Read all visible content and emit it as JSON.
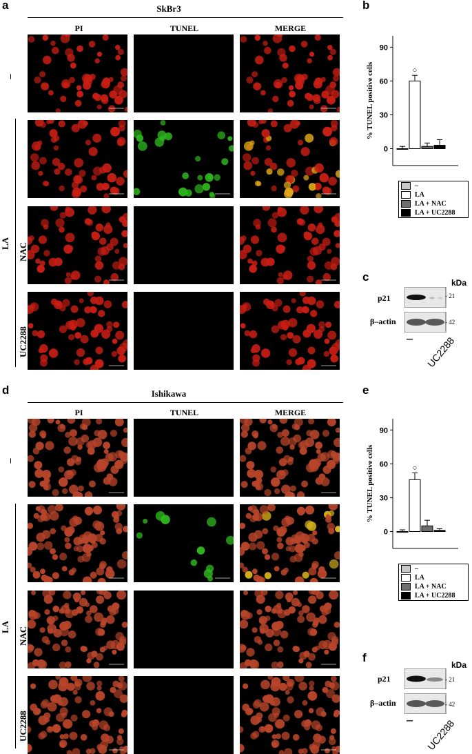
{
  "panels": {
    "a": "a",
    "b": "b",
    "c": "c",
    "d": "d",
    "e": "e",
    "f": "f"
  },
  "section_top": {
    "cell_line": "SkBr3",
    "columns": [
      "PI",
      "TUNEL",
      "MERGE"
    ],
    "row_control": "–",
    "row_group": "LA",
    "rows": [
      "NAC",
      "UC2288"
    ]
  },
  "section_bottom": {
    "cell_line": "Ishikawa",
    "columns": [
      "PI",
      "TUNEL",
      "MERGE"
    ],
    "row_control": "–",
    "row_group": "LA",
    "rows": [
      "NAC",
      "UC2288"
    ]
  },
  "chart_data": [
    {
      "type": "bar",
      "panel": "b",
      "ylabel": "% TUNEL positive cells",
      "yticks": [
        0,
        30,
        60,
        90
      ],
      "ylim": [
        -15,
        100
      ],
      "categories": [
        "–",
        "LA",
        "LA + NAC",
        "LA + UC2288"
      ],
      "values": [
        0,
        60,
        2,
        3
      ],
      "errors": [
        2,
        5,
        3,
        5
      ],
      "significance": [
        "",
        "○",
        "",
        ""
      ],
      "fills": [
        "#c8c8c8",
        "#ffffff",
        "#6e6e6e",
        "#000000"
      ]
    },
    {
      "type": "bar",
      "panel": "e",
      "ylabel": "% TUNEL positive cells",
      "yticks": [
        0,
        30,
        60,
        90
      ],
      "ylim": [
        -15,
        100
      ],
      "categories": [
        "–",
        "LA",
        "LA + NAC",
        "LA + UC2288"
      ],
      "values": [
        0,
        46,
        5,
        1
      ],
      "errors": [
        1.5,
        6,
        5,
        1.5
      ],
      "significance": [
        "",
        "○",
        "",
        ""
      ],
      "fills": [
        "#c8c8c8",
        "#ffffff",
        "#6e6e6e",
        "#000000"
      ]
    }
  ],
  "blot_c": {
    "unit": "kDa",
    "proteins": [
      {
        "name": "p21",
        "mw": "- 21"
      },
      {
        "name": "β–actin",
        "mw": "- 42"
      }
    ],
    "lanes": [
      "–",
      "UC2288"
    ]
  },
  "blot_f": {
    "unit": "kDa",
    "proteins": [
      {
        "name": "p21",
        "mw": "- 21"
      },
      {
        "name": "β–actin",
        "mw": "- 42"
      }
    ],
    "lanes": [
      "–",
      "UC2288"
    ]
  }
}
